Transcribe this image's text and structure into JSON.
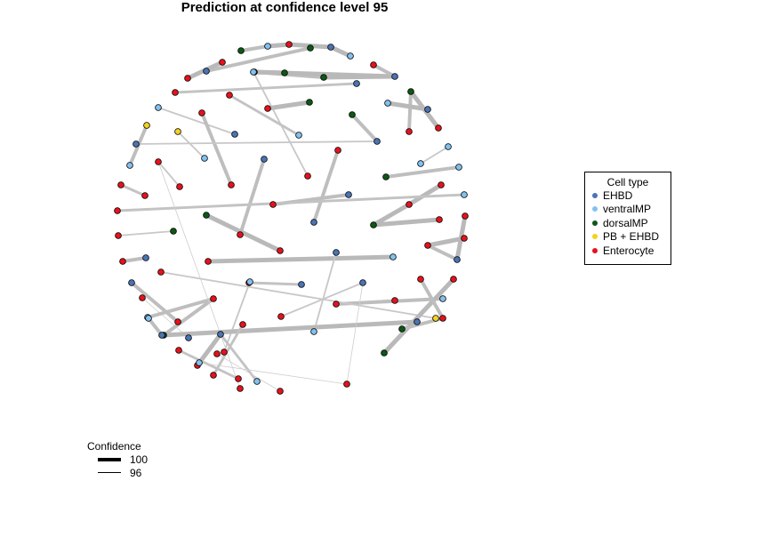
{
  "chart_data": {
    "type": "network",
    "title": "Prediction at confidence level 95",
    "legend_title": "Cell type",
    "cell_types": [
      {
        "name": "EHBD",
        "color": "#4a74b4"
      },
      {
        "name": "ventralMP",
        "color": "#82c1f0"
      },
      {
        "name": "dorsalMP",
        "color": "#0e5714"
      },
      {
        "name": "PB + EHBD",
        "color": "#f4d21f"
      },
      {
        "name": "Enterocyte",
        "color": "#e5121c"
      }
    ],
    "confidence_legend_title": "Confidence",
    "confidence_levels": [
      {
        "label": "100",
        "value": 100
      },
      {
        "label": "96",
        "value": 96
      }
    ],
    "nodes": [
      {
        "id": 1,
        "type": "ventralMP"
      },
      {
        "id": 2,
        "type": "Enterocyte"
      },
      {
        "id": 3,
        "type": "dorsalMP"
      },
      {
        "id": 4,
        "type": "EHBD"
      },
      {
        "id": 5,
        "type": "ventralMP"
      },
      {
        "id": 6,
        "type": "dorsalMP"
      },
      {
        "id": 7,
        "type": "EHBD"
      },
      {
        "id": 8,
        "type": "EHBD"
      },
      {
        "id": 9,
        "type": "dorsalMP"
      },
      {
        "id": 10,
        "type": "dorsalMP"
      },
      {
        "id": 11,
        "type": "EHBD"
      },
      {
        "id": 12,
        "type": "Enterocyte"
      },
      {
        "id": 13,
        "type": "ventralMP"
      },
      {
        "id": 14,
        "type": "EHBD"
      },
      {
        "id": 15,
        "type": "ventralMP"
      },
      {
        "id": 16,
        "type": "Enterocyte"
      },
      {
        "id": 17,
        "type": "Enterocyte"
      },
      {
        "id": 18,
        "type": "Enterocyte"
      },
      {
        "id": 19,
        "type": "Enterocyte"
      },
      {
        "id": 20,
        "type": "ventralMP"
      },
      {
        "id": 21,
        "type": "EHBD"
      },
      {
        "id": 22,
        "type": "Enterocyte"
      },
      {
        "id": 23,
        "type": "Enterocyte"
      },
      {
        "id": 24,
        "type": "Enterocyte"
      },
      {
        "id": 25,
        "type": "Enterocyte"
      },
      {
        "id": 26,
        "type": "dorsalMP"
      },
      {
        "id": 27,
        "type": "Enterocyte"
      },
      {
        "id": 28,
        "type": "Enterocyte"
      },
      {
        "id": 29,
        "type": "dorsalMP"
      },
      {
        "id": 30,
        "type": "EHBD"
      },
      {
        "id": 31,
        "type": "ventralMP"
      },
      {
        "id": 32,
        "type": "dorsalMP"
      },
      {
        "id": 33,
        "type": "EHBD"
      },
      {
        "id": 34,
        "type": "EHBD"
      },
      {
        "id": 35,
        "type": "ventralMP"
      },
      {
        "id": 36,
        "type": "ventralMP"
      },
      {
        "id": 37,
        "type": "PB + EHBD"
      },
      {
        "id": 38,
        "type": "ventralMP"
      },
      {
        "id": 39,
        "type": "Enterocyte"
      },
      {
        "id": 40,
        "type": "Enterocyte"
      },
      {
        "id": 41,
        "type": "ventralMP"
      },
      {
        "id": 42,
        "type": "PB + EHBD"
      },
      {
        "id": 43,
        "type": "ventralMP"
      },
      {
        "id": 44,
        "type": "dorsalMP"
      },
      {
        "id": 45,
        "type": "EHBD"
      },
      {
        "id": 46,
        "type": "Enterocyte"
      },
      {
        "id": 47,
        "type": "EHBD"
      },
      {
        "id": 48,
        "type": "Enterocyte"
      },
      {
        "id": 49,
        "type": "Enterocyte"
      },
      {
        "id": 50,
        "type": "EHBD"
      },
      {
        "id": 51,
        "type": "Enterocyte"
      },
      {
        "id": 52,
        "type": "Enterocyte"
      },
      {
        "id": 53,
        "type": "dorsalMP"
      },
      {
        "id": 54,
        "type": "Enterocyte"
      },
      {
        "id": 55,
        "type": "Enterocyte"
      },
      {
        "id": 56,
        "type": "Enterocyte"
      },
      {
        "id": 57,
        "type": "Enterocyte"
      },
      {
        "id": 58,
        "type": "ventralMP"
      },
      {
        "id": 59,
        "type": "Enterocyte"
      },
      {
        "id": 60,
        "type": "dorsalMP"
      },
      {
        "id": 61,
        "type": "dorsalMP"
      },
      {
        "id": 62,
        "type": "Enterocyte"
      },
      {
        "id": 63,
        "type": "Enterocyte"
      },
      {
        "id": 64,
        "type": "EHBD"
      },
      {
        "id": 65,
        "type": "Enterocyte"
      },
      {
        "id": 66,
        "type": "EHBD"
      },
      {
        "id": 67,
        "type": "Enterocyte"
      },
      {
        "id": 68,
        "type": "Enterocyte"
      },
      {
        "id": 69,
        "type": "ventralMP"
      },
      {
        "id": 70,
        "type": "Enterocyte"
      },
      {
        "id": 71,
        "type": "EHBD"
      },
      {
        "id": 72,
        "type": "ventralMP"
      },
      {
        "id": 73,
        "type": "EHBD"
      },
      {
        "id": 74,
        "type": "Enterocyte"
      },
      {
        "id": 75,
        "type": "Enterocyte"
      },
      {
        "id": 76,
        "type": "EHBD"
      },
      {
        "id": 77,
        "type": "Enterocyte"
      },
      {
        "id": 78,
        "type": "Enterocyte"
      },
      {
        "id": 79,
        "type": "ventralMP"
      },
      {
        "id": 80,
        "type": "PB + EHBD"
      },
      {
        "id": 81,
        "type": "Enterocyte"
      },
      {
        "id": 82,
        "type": "Enterocyte"
      },
      {
        "id": 83,
        "type": "ventralMP"
      },
      {
        "id": 84,
        "type": "EHBD"
      },
      {
        "id": 85,
        "type": "Enterocyte"
      },
      {
        "id": 86,
        "type": "Enterocyte"
      },
      {
        "id": 87,
        "type": "EHBD"
      },
      {
        "id": 88,
        "type": "ventralMP"
      },
      {
        "id": 89,
        "type": "dorsalMP"
      },
      {
        "id": 90,
        "type": "Enterocyte"
      },
      {
        "id": 91,
        "type": "EHBD"
      },
      {
        "id": 92,
        "type": "dorsalMP"
      },
      {
        "id": 93,
        "type": "Enterocyte"
      },
      {
        "id": 94,
        "type": "dorsalMP"
      },
      {
        "id": 95,
        "type": "Enterocyte"
      },
      {
        "id": 96,
        "type": "Enterocyte"
      },
      {
        "id": 97,
        "type": "Enterocyte"
      },
      {
        "id": 98,
        "type": "Enterocyte"
      },
      {
        "id": 99,
        "type": "ventralMP"
      },
      {
        "id": 100,
        "type": "EHBD"
      },
      {
        "id": 101,
        "type": "Enterocyte"
      },
      {
        "id": 102,
        "type": "Enterocyte"
      },
      {
        "id": 103,
        "type": "Enterocyte"
      },
      {
        "id": 104,
        "type": "EHBD"
      },
      {
        "id": 105,
        "type": "ventralMP"
      },
      {
        "id": 106,
        "type": "Enterocyte"
      },
      {
        "id": 107,
        "type": "Enterocyte"
      },
      {
        "id": 108,
        "type": "ventralMP"
      },
      {
        "id": 109,
        "type": "Enterocyte"
      },
      {
        "id": 110,
        "type": "Enterocyte"
      }
    ],
    "edges": [
      {
        "from": 1,
        "to": 2,
        "confidence": 100
      },
      {
        "from": 3,
        "to": 1,
        "confidence": 99
      },
      {
        "from": 2,
        "to": 4,
        "confidence": 100
      },
      {
        "from": 4,
        "to": 5,
        "confidence": 100
      },
      {
        "from": 6,
        "to": 7,
        "confidence": 99
      },
      {
        "from": 8,
        "to": 9,
        "confidence": 100
      },
      {
        "from": 8,
        "to": 10,
        "confidence": 99
      },
      {
        "from": 8,
        "to": 11,
        "confidence": 100
      },
      {
        "from": 11,
        "to": 10,
        "confidence": 100
      },
      {
        "from": 11,
        "to": 12,
        "confidence": 99
      },
      {
        "from": 13,
        "to": 14,
        "confidence": 97
      },
      {
        "from": 15,
        "to": 16,
        "confidence": 97
      },
      {
        "from": 17,
        "to": 18,
        "confidence": 100
      },
      {
        "from": 19,
        "to": 20,
        "confidence": 98
      },
      {
        "from": 21,
        "to": 22,
        "confidence": 98
      },
      {
        "from": 23,
        "to": 24,
        "confidence": 99
      },
      {
        "from": 25,
        "to": 26,
        "confidence": 100
      },
      {
        "from": 26,
        "to": 27,
        "confidence": 99
      },
      {
        "from": 28,
        "to": 29,
        "confidence": 100
      },
      {
        "from": 30,
        "to": 31,
        "confidence": 100
      },
      {
        "from": 32,
        "to": 33,
        "confidence": 99
      },
      {
        "from": 34,
        "to": 33,
        "confidence": 97
      },
      {
        "from": 35,
        "to": 36,
        "confidence": 97
      },
      {
        "from": 37,
        "to": 38,
        "confidence": 97
      },
      {
        "from": 39,
        "to": 40,
        "confidence": 97
      },
      {
        "from": 42,
        "to": 41,
        "confidence": 99
      },
      {
        "from": 43,
        "to": 44,
        "confidence": 99
      },
      {
        "from": 45,
        "to": 46,
        "confidence": 99
      },
      {
        "from": 47,
        "to": 48,
        "confidence": 99
      },
      {
        "from": 49,
        "to": 50,
        "confidence": 99
      },
      {
        "from": 51,
        "to": 52,
        "confidence": 100
      },
      {
        "from": 52,
        "to": 53,
        "confidence": 100
      },
      {
        "from": 53,
        "to": 54,
        "confidence": 100
      },
      {
        "from": 55,
        "to": 56,
        "confidence": 98
      },
      {
        "from": 57,
        "to": 58,
        "confidence": 98
      },
      {
        "from": 59,
        "to": 60,
        "confidence": 97
      },
      {
        "from": 61,
        "to": 62,
        "confidence": 100
      },
      {
        "from": 63,
        "to": 64,
        "confidence": 99
      },
      {
        "from": 65,
        "to": 66,
        "confidence": 100
      },
      {
        "from": 66,
        "to": 68,
        "confidence": 99
      },
      {
        "from": 67,
        "to": 68,
        "confidence": 100
      },
      {
        "from": 69,
        "to": 70,
        "confidence": 100
      },
      {
        "from": 71,
        "to": 72,
        "confidence": 97
      },
      {
        "from": 73,
        "to": 74,
        "confidence": 97
      },
      {
        "from": 75,
        "to": 76,
        "confidence": 98
      },
      {
        "from": 77,
        "to": 78,
        "confidence": 98
      },
      {
        "from": 78,
        "to": 79,
        "confidence": 99
      },
      {
        "from": 80,
        "to": 81,
        "confidence": 97
      },
      {
        "from": 82,
        "to": 83,
        "confidence": 97
      },
      {
        "from": 84,
        "to": 85,
        "confidence": 99
      },
      {
        "from": 86,
        "to": 87,
        "confidence": 96
      },
      {
        "from": 88,
        "to": 90,
        "confidence": 99
      },
      {
        "from": 89,
        "to": 90,
        "confidence": 99
      },
      {
        "from": 89,
        "to": 91,
        "confidence": 100
      },
      {
        "from": 91,
        "to": 94,
        "confidence": 98
      },
      {
        "from": 92,
        "to": 93,
        "confidence": 100
      },
      {
        "from": 94,
        "to": 96,
        "confidence": 99
      },
      {
        "from": 95,
        "to": 96,
        "confidence": 99
      },
      {
        "from": 97,
        "to": 98,
        "confidence": 98
      },
      {
        "from": 99,
        "to": 100,
        "confidence": 99
      },
      {
        "from": 101,
        "to": 104,
        "confidence": 100
      },
      {
        "from": 102,
        "to": 103,
        "confidence": 98
      },
      {
        "from": 104,
        "to": 105,
        "confidence": 98
      },
      {
        "from": 106,
        "to": 107,
        "confidence": 96
      },
      {
        "from": 108,
        "to": 109,
        "confidence": 96
      },
      {
        "from": 110,
        "to": 39,
        "confidence": 96
      },
      {
        "from": 109,
        "to": 73,
        "confidence": 96
      }
    ]
  }
}
